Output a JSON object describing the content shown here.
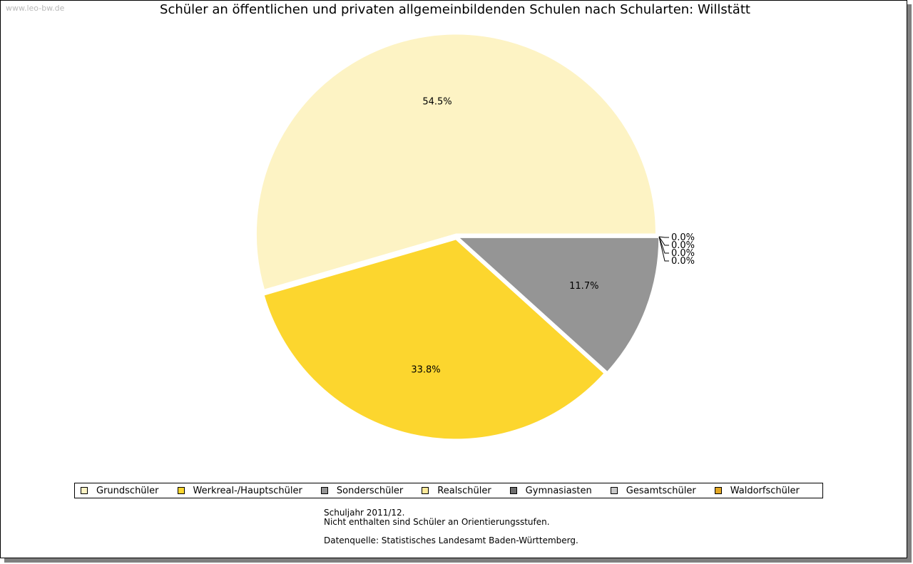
{
  "watermark": "www.leo-bw.de",
  "chart_data": {
    "type": "pie",
    "title": "Schüler an öffentlichen und privaten allgemeinbildenden Schulen nach Schularten: Willstätt",
    "slices": [
      {
        "name": "Grundschüler",
        "value": 54.5,
        "label": "54.5%",
        "color": "#fdf3c4"
      },
      {
        "name": "Werkreal-/Hauptschüler",
        "value": 33.8,
        "label": "33.8%",
        "color": "#fcd62e"
      },
      {
        "name": "Sonderschüler",
        "value": 11.7,
        "label": "11.7%",
        "color": "#959595"
      },
      {
        "name": "Realschüler",
        "value": 0.0,
        "label": "0.0%",
        "color": "#fde99a"
      },
      {
        "name": "Gymnasiasten",
        "value": 0.0,
        "label": "0.0%",
        "color": "#6e6e6e"
      },
      {
        "name": "Gesamtschüler",
        "value": 0.0,
        "label": "0.0%",
        "color": "#c8c8c8"
      },
      {
        "name": "Waldorfschüler",
        "value": 0.0,
        "label": "0.0%",
        "color": "#e3a723"
      }
    ],
    "legend_position": "bottom"
  },
  "notes": {
    "line1": "Schuljahr 2011/12.",
    "line2": "Nicht enthalten sind Schüler an Orientierungsstufen.",
    "line3": "Datenquelle: Statistisches Landesamt Baden-Württemberg."
  }
}
